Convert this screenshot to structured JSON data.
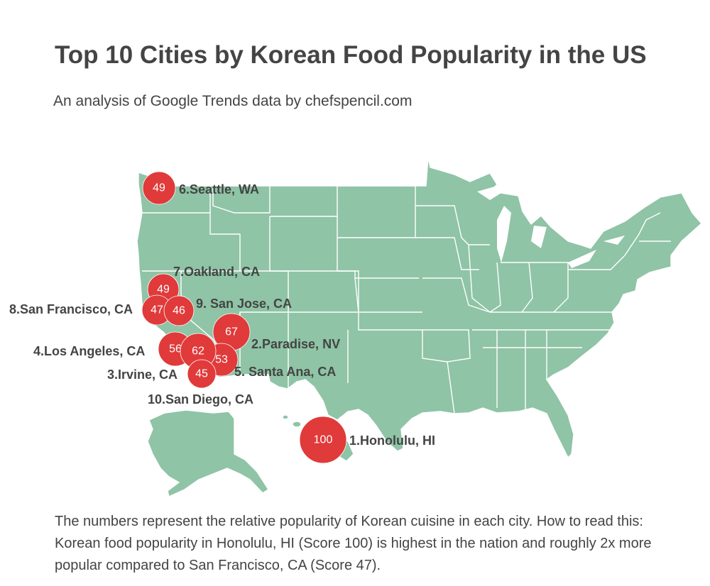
{
  "header": {
    "title": "Top 10 Cities by Korean Food Popularity in the US",
    "subtitle": "An analysis of Google Trends data by chefspencil.com"
  },
  "map": {
    "region": "United States",
    "fill_color": "#8fc4a6",
    "border_color": "#ffffff",
    "marker_color": "#e03a3a",
    "cities": [
      {
        "rank": 1,
        "label": "1.Honolulu, HI",
        "score": "100"
      },
      {
        "rank": 2,
        "label": "2.Paradise, NV",
        "score": "67"
      },
      {
        "rank": 3,
        "label": "3.Irvine, CA",
        "score": "62"
      },
      {
        "rank": 4,
        "label": "4.Los Angeles, CA",
        "score": "56"
      },
      {
        "rank": 5,
        "label": "5. Santa Ana, CA",
        "score": "53"
      },
      {
        "rank": 6,
        "label": "6.Seattle, WA",
        "score": "49"
      },
      {
        "rank": 7,
        "label": "7.Oakland, CA",
        "score": "49"
      },
      {
        "rank": 8,
        "label": "8.San Francisco, CA",
        "score": "47"
      },
      {
        "rank": 9,
        "label": "9. San Jose, CA",
        "score": "46"
      },
      {
        "rank": 10,
        "label": "10.San Diego, CA",
        "score": "45"
      }
    ]
  },
  "footnote": "The numbers represent the relative popularity of Korean cuisine in each city. How to read this: Korean food popularity in Honolulu, HI (Score 100) is highest in the nation and roughly 2x more popular compared to San Francisco, CA (Score 47)."
}
